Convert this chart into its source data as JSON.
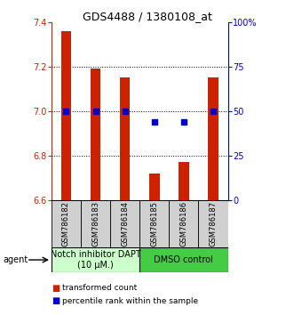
{
  "title": "GDS4488 / 1380108_at",
  "samples": [
    "GSM786182",
    "GSM786183",
    "GSM786184",
    "GSM786185",
    "GSM786186",
    "GSM786187"
  ],
  "bar_values": [
    7.36,
    7.19,
    7.15,
    6.72,
    6.77,
    7.15
  ],
  "percentile_values": [
    50,
    50,
    50,
    44,
    44,
    50
  ],
  "bar_color": "#cc2200",
  "dot_color": "#0000cc",
  "ylim_left": [
    6.6,
    7.4
  ],
  "ylim_right": [
    0,
    100
  ],
  "yticks_left": [
    6.6,
    6.8,
    7.0,
    7.2,
    7.4
  ],
  "yticks_right": [
    0,
    25,
    50,
    75,
    100
  ],
  "ytick_labels_right": [
    "0",
    "25",
    "50",
    "75",
    "100%"
  ],
  "grid_values": [
    6.8,
    7.0,
    7.2
  ],
  "group1_label": "Notch inhibitor DAPT\n(10 μM.)",
  "group2_label": "DMSO control",
  "group1_color": "#ccffcc",
  "group2_color": "#44cc44",
  "agent_label": "agent",
  "legend1": "transformed count",
  "legend2": "percentile rank within the sample",
  "bar_width": 0.35,
  "base_value": 6.6,
  "left_color": "#cc2200",
  "right_color": "#0000cc",
  "tick_fontsize": 7,
  "title_fontsize": 9,
  "label_fontsize": 7,
  "sample_fontsize": 6,
  "group_fontsize": 7
}
